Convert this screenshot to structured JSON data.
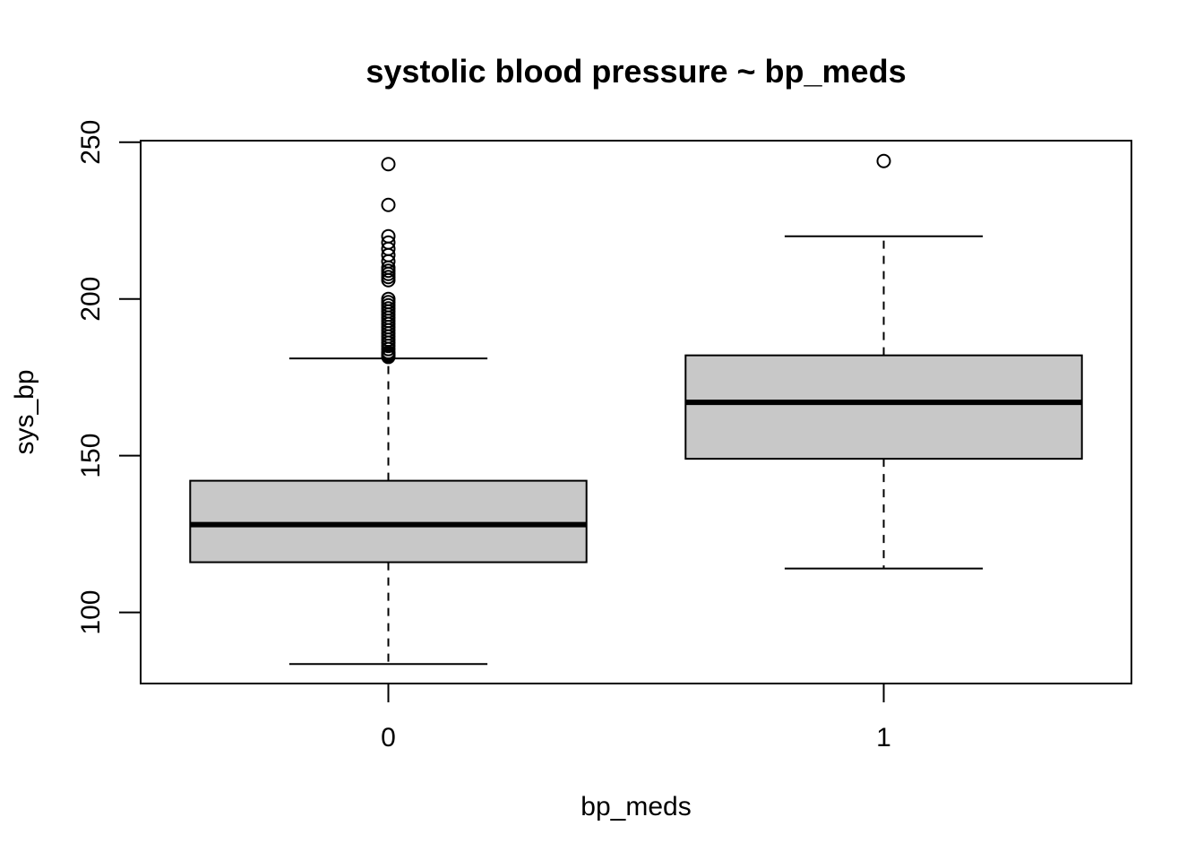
{
  "chart_data": {
    "type": "box",
    "title": "systolic blood pressure ~ bp_meds",
    "xlabel": "bp_meds",
    "ylabel": "sys_bp",
    "categories": [
      "0",
      "1"
    ],
    "yticks": [
      100,
      150,
      200,
      250
    ],
    "ylim": [
      77.3,
      250.5
    ],
    "grid": false,
    "colors": {
      "box_fill": "#c8c8c8",
      "line": "#000000",
      "background": "#ffffff"
    },
    "boxes": [
      {
        "category": "0",
        "whisker_low": 83.5,
        "q1": 116,
        "median": 128,
        "q3": 142,
        "whisker_high": 181,
        "outliers": [
          181.5,
          182,
          182.5,
          183,
          184,
          185,
          186,
          187,
          188,
          189,
          190,
          191,
          192,
          193,
          194,
          195,
          196,
          197,
          198,
          199,
          200,
          206,
          207,
          208,
          209,
          210,
          212,
          214,
          216,
          218,
          220,
          230,
          243
        ]
      },
      {
        "category": "1",
        "whisker_low": 114,
        "q1": 149,
        "median": 167,
        "q3": 182,
        "whisker_high": 220,
        "outliers": [
          244
        ]
      }
    ]
  }
}
